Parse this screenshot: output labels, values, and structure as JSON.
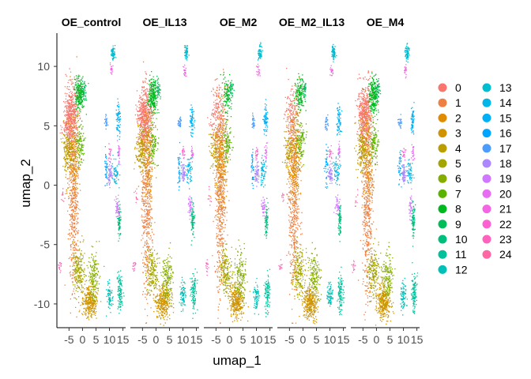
{
  "chart_data": {
    "type": "scatter",
    "xlabel": "umap_1",
    "ylabel": "umap_2",
    "xlim": [
      -9.5,
      16
    ],
    "ylim": [
      -12,
      12.8
    ],
    "x_ticks": [
      -5,
      0,
      5,
      10,
      15
    ],
    "x_tick_labels": [
      "-5",
      "0",
      "5",
      "10",
      "15"
    ],
    "y_ticks": [
      -10,
      -5,
      0,
      5,
      10
    ],
    "y_tick_labels": [
      "-10",
      "-5",
      "0",
      "5",
      "10"
    ],
    "panels": [
      {
        "name": "OE_control",
        "mix": {
          "0": 1.0,
          "2": 0.6,
          "4": 0.6,
          "8": 1.0
        }
      },
      {
        "name": "OE_IL13",
        "mix": {
          "0": 1.0,
          "2": 0.6,
          "4": 0.6,
          "8": 1.0
        }
      },
      {
        "name": "OE_M2",
        "mix": {
          "0": 0.4,
          "2": 1.0,
          "4": 0.3,
          "8": 0.45
        }
      },
      {
        "name": "OE_M2_IL13",
        "mix": {
          "0": 0.3,
          "2": 1.0,
          "4": 0.3,
          "8": 0.6
        }
      },
      {
        "name": "OE_M4",
        "mix": {
          "0": 1.0,
          "2": 0.6,
          "4": 0.6,
          "8": 1.0
        }
      }
    ],
    "clusters": [
      {
        "label": "0",
        "color": "#F8766D",
        "x": -4.5,
        "y": 5.8,
        "sx": 1.3,
        "sy": 1.3,
        "n": 520
      },
      {
        "label": "1",
        "color": "#EE8043",
        "x": -3.5,
        "y": -1.5,
        "sx": 1.0,
        "sy": 3.8,
        "n": 500
      },
      {
        "label": "2",
        "color": "#E08B00",
        "x": -3.2,
        "y": 2.5,
        "sx": 1.2,
        "sy": 2.0,
        "n": 330
      },
      {
        "label": "3",
        "color": "#CF9400",
        "x": 2.5,
        "y": -9.8,
        "sx": 1.3,
        "sy": 0.7,
        "n": 330
      },
      {
        "label": "4",
        "color": "#BB9D00",
        "x": -5.5,
        "y": 3.0,
        "sx": 1.0,
        "sy": 0.9,
        "n": 300
      },
      {
        "label": "5",
        "color": "#A3A500",
        "x": -1.5,
        "y": -7.2,
        "sx": 1.1,
        "sy": 1.0,
        "n": 190
      },
      {
        "label": "6",
        "color": "#85AD00",
        "x": 4.0,
        "y": -7.6,
        "sx": 1.0,
        "sy": 1.0,
        "n": 160
      },
      {
        "label": "7",
        "color": "#5BB300",
        "x": -1.0,
        "y": 3.5,
        "sx": 0.8,
        "sy": 0.8,
        "n": 100
      },
      {
        "label": "8",
        "color": "#00B81F",
        "x": -1.3,
        "y": 7.6,
        "sx": 0.8,
        "sy": 0.7,
        "n": 240
      },
      {
        "label": "9",
        "color": "#00BC59",
        "x": 0.5,
        "y": 8.1,
        "sx": 0.4,
        "sy": 0.4,
        "n": 40
      },
      {
        "label": "10",
        "color": "#00BF7D",
        "x": 13.5,
        "y": -3.0,
        "sx": 0.3,
        "sy": 0.7,
        "n": 80
      },
      {
        "label": "11",
        "color": "#00C19C",
        "x": 13.8,
        "y": -9.0,
        "sx": 0.5,
        "sy": 0.8,
        "n": 110
      },
      {
        "label": "12",
        "color": "#00C0B8",
        "x": 9.8,
        "y": -9.3,
        "sx": 0.5,
        "sy": 0.6,
        "n": 80
      },
      {
        "label": "13",
        "color": "#00BDD0",
        "x": 11.2,
        "y": 11.2,
        "sx": 0.35,
        "sy": 0.3,
        "n": 70
      },
      {
        "label": "14",
        "color": "#00B7E7",
        "x": 12.2,
        "y": 1.2,
        "sx": 0.6,
        "sy": 0.6,
        "n": 60
      },
      {
        "label": "15",
        "color": "#00B0F6",
        "x": 13.2,
        "y": 5.5,
        "sx": 0.4,
        "sy": 0.6,
        "n": 70
      },
      {
        "label": "16",
        "color": "#00A5FF",
        "x": 8.5,
        "y": 1.5,
        "sx": 0.3,
        "sy": 0.8,
        "n": 40
      },
      {
        "label": "17",
        "color": "#4C9CFF",
        "x": 8.6,
        "y": 5.3,
        "sx": 0.3,
        "sy": 0.3,
        "n": 30
      },
      {
        "label": "18",
        "color": "#AC88FF",
        "x": 10.0,
        "y": 1.0,
        "sx": 0.4,
        "sy": 0.4,
        "n": 60
      },
      {
        "label": "19",
        "color": "#D177FF",
        "x": 12.5,
        "y": -1.8,
        "sx": 0.4,
        "sy": 0.4,
        "n": 40
      },
      {
        "label": "20",
        "color": "#E76CF3",
        "x": 13.3,
        "y": 2.8,
        "sx": 0.2,
        "sy": 0.4,
        "n": 25
      },
      {
        "label": "21",
        "color": "#F564E3",
        "x": 10.5,
        "y": 9.7,
        "sx": 0.3,
        "sy": 0.25,
        "n": 20
      },
      {
        "label": "22",
        "color": "#FE61CF",
        "x": 10.0,
        "y": 2.7,
        "sx": 0.3,
        "sy": 0.3,
        "n": 20
      },
      {
        "label": "23",
        "color": "#FF62BC",
        "x": -8.5,
        "y": -6.8,
        "sx": 0.3,
        "sy": 0.3,
        "n": 15
      },
      {
        "label": "24",
        "color": "#FF67A4",
        "x": -7.5,
        "y": -1.0,
        "sx": 0.3,
        "sy": 0.4,
        "n": 10
      }
    ],
    "legend_position": "right",
    "grid": false
  }
}
